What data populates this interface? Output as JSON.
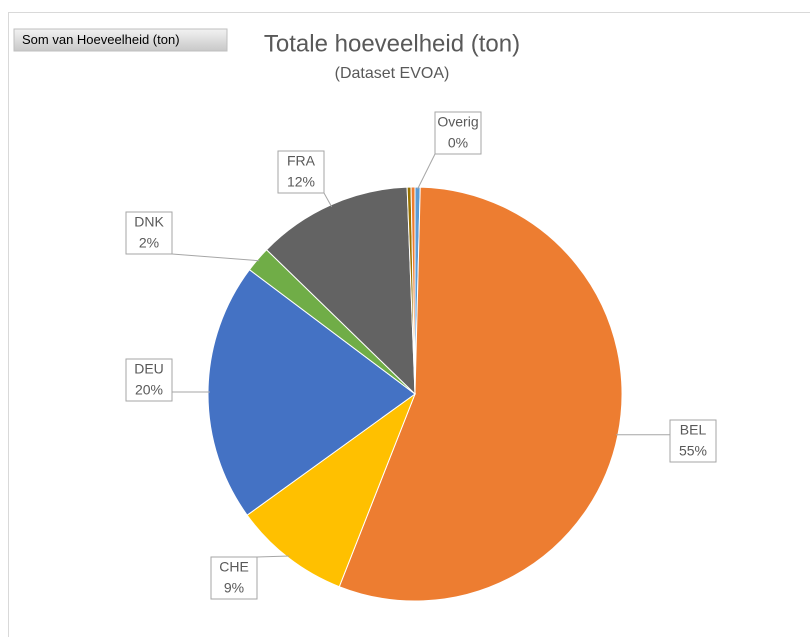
{
  "chart_data": {
    "type": "pie",
    "field_button": "Som van Hoeveelheid (ton)",
    "title": "Totale hoeveelheid (ton)",
    "subtitle": "(Dataset EVOA)",
    "categories": [
      "Overig",
      "BEL",
      "CHE",
      "DEU",
      "DNK",
      "FRA",
      null,
      null
    ],
    "values": [
      0.4,
      55,
      9,
      20,
      2,
      12,
      0.3,
      0.3
    ],
    "value_labels": [
      "0%",
      "55%",
      "9%",
      "20%",
      "2%",
      "12%",
      null,
      null
    ],
    "colors": [
      "#5b9bd5",
      "#ed7d31",
      "#ffc000",
      "#4472c4",
      "#70ad47",
      "#636363",
      "#997300",
      "#ed7d31"
    ]
  }
}
